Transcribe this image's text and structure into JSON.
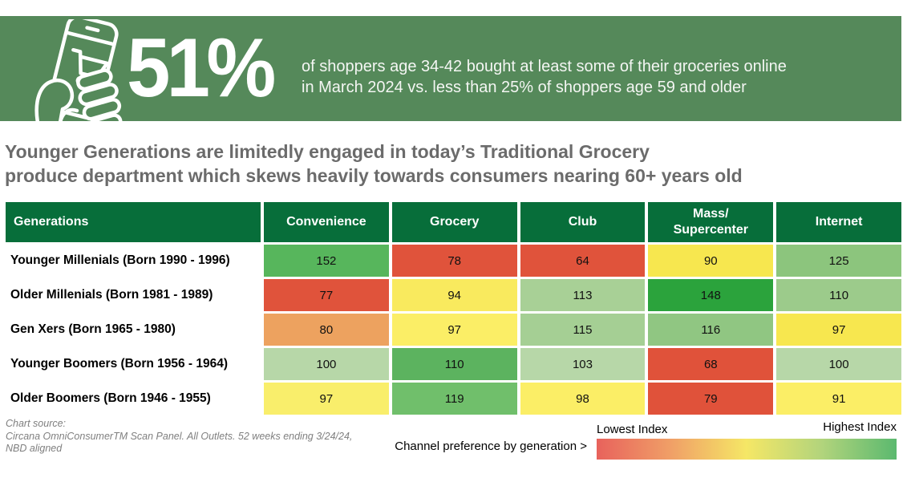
{
  "banner": {
    "stat": "51%",
    "description": "of shoppers age 34-42 bought at least some of their groceries online\nin March 2024 vs. less than 25% of shoppers age 59 and older",
    "bg_color": "#55895a",
    "icon": "hand-phone-shopping-cart-icon"
  },
  "headline": "Younger Generations are limitedly engaged in today’s Traditional Grocery\nproduce department which skews heavily towards consumers nearing 60+ years old",
  "chart_data": {
    "type": "heatmap",
    "title": "Younger Generations are limitedly engaged in today’s Traditional Grocery produce department which skews heavily towards consumers nearing 60+ years old",
    "row_header": "Generations",
    "columns": [
      "Convenience",
      "Grocery",
      "Club",
      "Mass/\nSupercenter",
      "Internet"
    ],
    "rows": [
      {
        "label": "Younger Millenials (Born 1990 - 1996)",
        "values": [
          152,
          78,
          64,
          90,
          125
        ],
        "colors": [
          "#57b65c",
          "#e0533b",
          "#e0533b",
          "#f7e74f",
          "#8cc57d"
        ]
      },
      {
        "label": "Older Millenials (Born 1981 - 1989)",
        "values": [
          77,
          94,
          113,
          148,
          110
        ],
        "colors": [
          "#e0533b",
          "#f9ea5e",
          "#a8d096",
          "#2ba33c",
          "#9ccb8b"
        ]
      },
      {
        "label": "Gen Xers (Born 1965 - 1980)",
        "values": [
          80,
          97,
          115,
          116,
          97
        ],
        "colors": [
          "#eda25f",
          "#fbee66",
          "#a5cf94",
          "#90c682",
          "#f7e74f"
        ]
      },
      {
        "label": "Younger Boomers (Born 1956 - 1964)",
        "values": [
          100,
          110,
          103,
          68,
          100
        ],
        "colors": [
          "#b7d7a8",
          "#5cb35f",
          "#b7d7a8",
          "#e0523a",
          "#b7d7a8"
        ]
      },
      {
        "label": "Older Boomers (Born 1946 - 1955)",
        "values": [
          97,
          119,
          98,
          79,
          91
        ],
        "colors": [
          "#f9ee6b",
          "#70bf6b",
          "#fbee66",
          "#e0523a",
          "#fbee66"
        ]
      }
    ],
    "header_bg": "#076e3a",
    "legend": {
      "caption": "Channel preference by generation >",
      "low_label": "Lowest Index",
      "high_label": "Highest Index",
      "gradient": [
        "#e8625c",
        "#f0a067",
        "#f5e766",
        "#b2d47c",
        "#5bb96f"
      ]
    }
  },
  "footer": {
    "source": "Chart source:\nCircana OmniConsumerTM Scan Panel. All Outlets. 52 weeks ending 3/24/24,\nNBD aligned"
  }
}
